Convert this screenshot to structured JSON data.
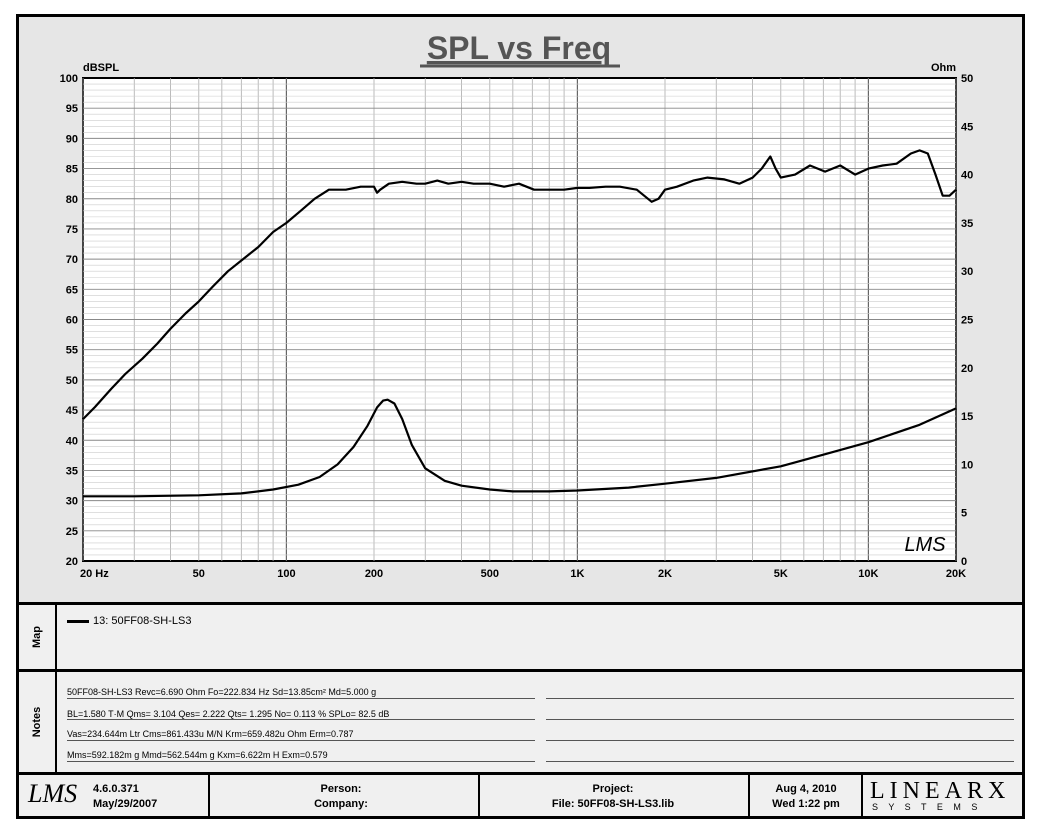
{
  "chart_data": {
    "type": "line",
    "title": "SPL vs Freq",
    "y_left_unit": "dBSPL",
    "y_right_unit": "Ohm",
    "x_scale": "log",
    "xlim": [
      20,
      20000
    ],
    "ylim_left": [
      20,
      100
    ],
    "ylim_right": [
      0,
      50
    ],
    "x_tick_labels": [
      {
        "value": 20,
        "label": "20  Hz"
      },
      {
        "value": 50,
        "label": "50"
      },
      {
        "value": 100,
        "label": "100"
      },
      {
        "value": 200,
        "label": "200"
      },
      {
        "value": 500,
        "label": "500"
      },
      {
        "value": 1000,
        "label": "1K"
      },
      {
        "value": 2000,
        "label": "2K"
      },
      {
        "value": 5000,
        "label": "5K"
      },
      {
        "value": 10000,
        "label": "10K"
      },
      {
        "value": 20000,
        "label": "20K"
      }
    ],
    "y_left_ticks": [
      20,
      25,
      30,
      35,
      40,
      45,
      50,
      55,
      60,
      65,
      70,
      75,
      80,
      85,
      90,
      95,
      100
    ],
    "y_right_ticks": [
      0,
      5,
      10,
      15,
      20,
      25,
      30,
      35,
      40,
      45,
      50
    ],
    "grid": true,
    "series": [
      {
        "name": "13: 50FF08-SH-LS3",
        "axis": "left",
        "x": [
          20,
          22,
          25,
          28,
          32,
          36,
          40,
          45,
          50,
          56,
          63,
          71,
          80,
          90,
          100,
          112,
          125,
          140,
          160,
          180,
          200,
          205,
          210,
          225,
          250,
          280,
          300,
          330,
          360,
          400,
          440,
          500,
          560,
          630,
          710,
          800,
          900,
          1000,
          1100,
          1250,
          1400,
          1600,
          1800,
          1900,
          2000,
          2200,
          2500,
          2800,
          3200,
          3600,
          4000,
          4300,
          4600,
          4800,
          5000,
          5600,
          6300,
          7100,
          8000,
          9000,
          10000,
          11200,
          12500,
          14000,
          15000,
          16000,
          17000,
          18000,
          19000,
          20000
        ],
        "values": [
          43.5,
          45.5,
          48.5,
          51,
          53.5,
          56,
          58.5,
          61,
          63,
          65.5,
          68,
          70,
          72,
          74.5,
          76,
          78,
          80,
          81.5,
          81.5,
          82,
          82,
          81,
          81.5,
          82.5,
          82.8,
          82.5,
          82.5,
          83,
          82.5,
          82.8,
          82.5,
          82.5,
          82,
          82.5,
          81.5,
          81.5,
          81.5,
          81.8,
          81.8,
          82,
          82,
          81.5,
          79.5,
          80,
          81.5,
          82,
          83,
          83.5,
          83.2,
          82.5,
          83.5,
          85,
          87,
          85,
          83.5,
          84,
          85.5,
          84.5,
          85.5,
          84,
          85,
          85.5,
          85.8,
          87.5,
          88,
          87.5,
          84,
          80.5,
          80.5,
          81.5
        ]
      },
      {
        "name": "",
        "axis": "right",
        "x": [
          20,
          30,
          50,
          70,
          90,
          110,
          130,
          150,
          170,
          190,
          205,
          215,
          222.8,
          235,
          250,
          270,
          300,
          350,
          400,
          500,
          600,
          700,
          800,
          1000,
          1500,
          2000,
          3000,
          5000,
          7000,
          10000,
          15000,
          20000
        ],
        "values": [
          6.7,
          6.7,
          6.8,
          7.0,
          7.4,
          7.9,
          8.7,
          10.0,
          11.8,
          14.0,
          15.9,
          16.6,
          16.7,
          16.3,
          14.7,
          12.0,
          9.6,
          8.3,
          7.8,
          7.4,
          7.2,
          7.2,
          7.2,
          7.3,
          7.6,
          8.0,
          8.6,
          9.8,
          11.0,
          12.3,
          14.1,
          15.8
        ]
      }
    ],
    "annotation": "LMS"
  },
  "map": {
    "label": "Map",
    "entries": [
      "13: 50FF08-SH-LS3"
    ]
  },
  "notes": {
    "label": "Notes",
    "rows": [
      "50FF08-SH-LS3 Revc=6.690 Ohm  Fo=222.834 Hz  Sd=13.85cm² Md=5.000 g",
      "BL=1.580 T·M  Qms= 3.104  Qes= 2.222  Qts= 1.295  No= 0.113 %  SPLo= 82.5 dB",
      "Vas=234.644m Ltr  Cms=861.433u M/N  Krm=659.482u Ohm  Erm=0.787",
      "Mms=592.182m g  Mmd=562.544m g  Kxm=6.622m H  Exm=0.579"
    ]
  },
  "footer": {
    "logo": "LMS",
    "version": "4.6.0.371",
    "build_date": "May/29/2007",
    "person_label": "Person:",
    "company_label": "Company:",
    "project_label": "Project:",
    "file_label": "File: 50FF08-SH-LS3.lib",
    "date": "Aug  4, 2010",
    "time": "Wed  1:22 pm",
    "brand_main": "LINEARX",
    "brand_sub": "S Y S T E M S"
  }
}
